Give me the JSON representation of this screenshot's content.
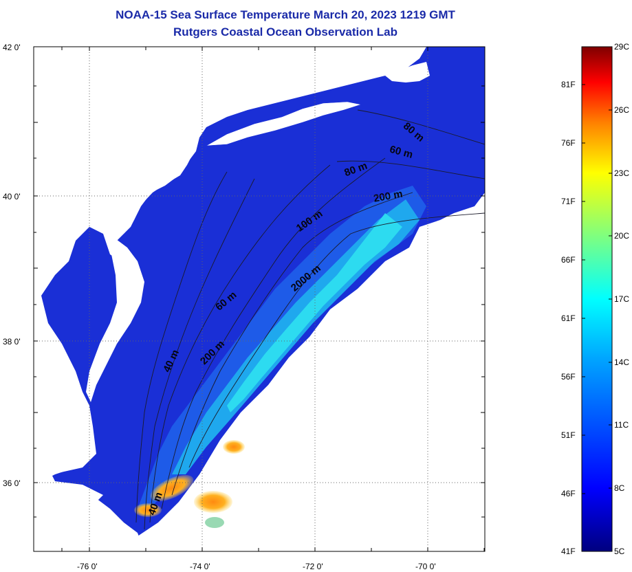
{
  "title": {
    "line1": "NOAA-15 Sea Surface Temperature March 20, 2023 1219 GMT",
    "line2": "Rutgers Coastal Ocean Observation Lab"
  },
  "axes": {
    "lat_labels": [
      "42 0'",
      "40 0'",
      "38 0'",
      "36 0'"
    ],
    "lon_labels": [
      "-76 0'",
      "-74 0'",
      "-72 0'",
      "-70 0'"
    ]
  },
  "contour_labels": [
    "80 m",
    "60 m",
    "80 m",
    "200 m",
    "100 m",
    "2000 m",
    "60 m",
    "200 m",
    "40 m",
    "40 m"
  ],
  "colorbar": {
    "fahrenheit_labels": [
      "81F",
      "76F",
      "71F",
      "66F",
      "61F",
      "56F",
      "51F",
      "46F",
      "41F"
    ],
    "celsius_labels": [
      "29C",
      "26C",
      "23C",
      "20C",
      "17C",
      "14C",
      "11C",
      "8C",
      "5C"
    ],
    "colors": [
      "#00007f",
      "#0000ff",
      "#007fff",
      "#00ffff",
      "#7fff7f",
      "#ffff00",
      "#ff7f00",
      "#ff0000",
      "#7f0000"
    ]
  },
  "colors": {
    "title": "#1a2aa8",
    "land": "#ffffff",
    "ocean_cold": "#1a2fd6",
    "ocean_shelf": "#1e5be8",
    "ocean_slope": "#1fa8ee",
    "gulf_stream": "#2fe0f0",
    "warm_core": "#ff9a1f"
  }
}
